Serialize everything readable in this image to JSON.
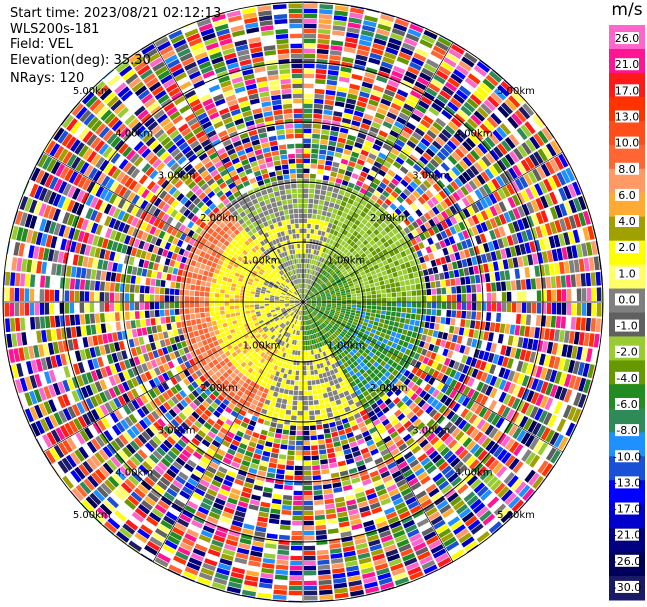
{
  "info": {
    "start_time": "Start time: 2023/08/21 02:12:13",
    "site": "WLS200s-181",
    "field": "Field: VEL",
    "elevation": "Elevation(deg): 35.30",
    "nrays": "NRays: 120"
  },
  "range_rings": [
    {
      "range_km": 1,
      "label": "1.00km"
    },
    {
      "range_km": 2,
      "label": "2.00km"
    },
    {
      "range_km": 3,
      "label": "3.00km"
    },
    {
      "range_km": 4,
      "label": "4.00km"
    },
    {
      "range_km": 5,
      "label": "5.00km"
    }
  ],
  "colorbar": {
    "unit": "m/s",
    "ticks": [
      "26.0",
      "21.0",
      "17.0",
      "13.0",
      "10.0",
      "8.0",
      "6.0",
      "4.0",
      "2.0",
      "1.0",
      "0.0",
      "-1.0",
      "-2.0",
      "-4.0",
      "-6.0",
      "-8.0",
      "-10.0",
      "-13.0",
      "-17.0",
      "-21.0",
      "-26.0",
      "-30.0"
    ],
    "colors": [
      "#ff66cc",
      "#ff1493",
      "#ff1a1a",
      "#ff3300",
      "#ff4d1a",
      "#ff6633",
      "#ff9966",
      "#ffaa33",
      "#a0a000",
      "#ffff00",
      "#ffff66",
      "#808080",
      "#606060",
      "#99cc33",
      "#669900",
      "#228b22",
      "#2e8b57",
      "#1e90ff",
      "#1a4fd8",
      "#0000ff",
      "#0000cc",
      "#000080",
      "#00005a",
      "#1a1a66"
    ]
  },
  "scan": {
    "n_rays": 120,
    "max_range_km": 5.0
  }
}
